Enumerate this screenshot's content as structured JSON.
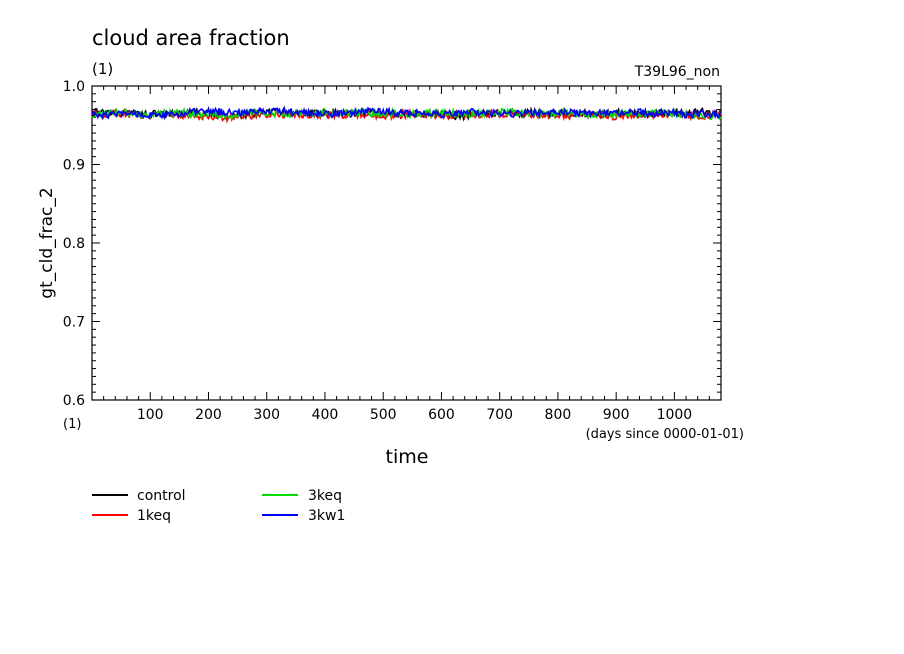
{
  "chart_data": {
    "type": "line",
    "title": "cloud area fraction",
    "units_label": "(1)",
    "run_label": "T39L96_non",
    "xlabel": "time",
    "x_units_label": "(1)",
    "x_subtitle": "(days since 0000-01-01)",
    "ylabel": "gt_cld_frac_2",
    "xlim": [
      0,
      1080
    ],
    "ylim": [
      0.6,
      1.0
    ],
    "x_ticks": [
      100,
      200,
      300,
      400,
      500,
      600,
      700,
      800,
      900,
      1000
    ],
    "y_ticks": [
      0.6,
      0.7,
      0.8,
      0.9,
      1.0
    ],
    "y_tick_labels": [
      "0.6",
      "0.7",
      "0.8",
      "0.9",
      "1.0"
    ],
    "grid": false,
    "legend_position": "bottom-left",
    "series": [
      {
        "name": "control",
        "color": "#000000",
        "mean": 0.965,
        "x": [
          0,
          30,
          60,
          90,
          120,
          150,
          180,
          210,
          240,
          270,
          300,
          330,
          360,
          390,
          420,
          450,
          480,
          510,
          540,
          570,
          600,
          630,
          660,
          690,
          720,
          750,
          780,
          810,
          840,
          870,
          900,
          930,
          960,
          990,
          1020,
          1050,
          1080
        ],
        "values": [
          0.966,
          0.968,
          0.964,
          0.966,
          0.963,
          0.965,
          0.966,
          0.964,
          0.962,
          0.965,
          0.967,
          0.966,
          0.964,
          0.965,
          0.966,
          0.963,
          0.965,
          0.964,
          0.966,
          0.965,
          0.964,
          0.961,
          0.965,
          0.966,
          0.964,
          0.966,
          0.965,
          0.966,
          0.965,
          0.964,
          0.966,
          0.965,
          0.964,
          0.966,
          0.965,
          0.967,
          0.965
        ]
      },
      {
        "name": "1keq",
        "color": "#ff0000",
        "mean": 0.964,
        "x": [
          0,
          30,
          60,
          90,
          120,
          150,
          180,
          210,
          240,
          270,
          300,
          330,
          360,
          390,
          420,
          450,
          480,
          510,
          540,
          570,
          600,
          630,
          660,
          690,
          720,
          750,
          780,
          810,
          840,
          870,
          900,
          930,
          960,
          990,
          1020,
          1050,
          1080
        ],
        "values": [
          0.963,
          0.965,
          0.964,
          0.962,
          0.964,
          0.963,
          0.962,
          0.961,
          0.96,
          0.962,
          0.964,
          0.963,
          0.964,
          0.962,
          0.963,
          0.964,
          0.963,
          0.962,
          0.964,
          0.963,
          0.962,
          0.964,
          0.963,
          0.965,
          0.964,
          0.963,
          0.964,
          0.962,
          0.964,
          0.963,
          0.961,
          0.963,
          0.962,
          0.964,
          0.963,
          0.962,
          0.963
        ]
      },
      {
        "name": "3keq",
        "color": "#00dd00",
        "mean": 0.965,
        "x": [
          0,
          30,
          60,
          90,
          120,
          150,
          180,
          210,
          240,
          270,
          300,
          330,
          360,
          390,
          420,
          450,
          480,
          510,
          540,
          570,
          600,
          630,
          660,
          690,
          720,
          750,
          780,
          810,
          840,
          870,
          900,
          930,
          960,
          990,
          1020,
          1050,
          1080
        ],
        "values": [
          0.962,
          0.965,
          0.966,
          0.964,
          0.965,
          0.966,
          0.964,
          0.965,
          0.963,
          0.966,
          0.965,
          0.964,
          0.966,
          0.965,
          0.964,
          0.966,
          0.965,
          0.966,
          0.964,
          0.965,
          0.966,
          0.965,
          0.964,
          0.966,
          0.967,
          0.965,
          0.964,
          0.966,
          0.965,
          0.963,
          0.965,
          0.964,
          0.966,
          0.965,
          0.964,
          0.962,
          0.961
        ]
      },
      {
        "name": "3kw1",
        "color": "#0000ff",
        "mean": 0.966,
        "x": [
          0,
          30,
          60,
          90,
          120,
          150,
          180,
          210,
          240,
          270,
          300,
          330,
          360,
          390,
          420,
          450,
          480,
          510,
          540,
          570,
          600,
          630,
          660,
          690,
          720,
          750,
          780,
          810,
          840,
          870,
          900,
          930,
          960,
          990,
          1020,
          1050,
          1080
        ],
        "values": [
          0.964,
          0.963,
          0.965,
          0.964,
          0.962,
          0.964,
          0.967,
          0.968,
          0.966,
          0.967,
          0.969,
          0.968,
          0.966,
          0.965,
          0.964,
          0.966,
          0.968,
          0.967,
          0.965,
          0.966,
          0.964,
          0.965,
          0.967,
          0.965,
          0.964,
          0.966,
          0.965,
          0.967,
          0.966,
          0.965,
          0.966,
          0.967,
          0.965,
          0.966,
          0.964,
          0.965,
          0.963
        ]
      }
    ]
  }
}
